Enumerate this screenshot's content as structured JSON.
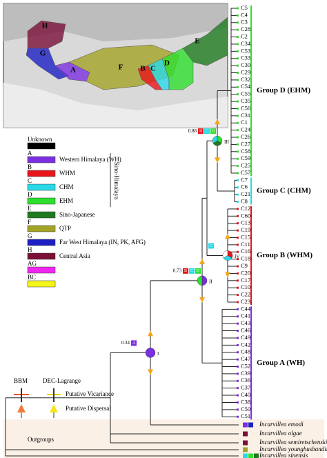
{
  "map": {
    "regions": [
      "H",
      "G",
      "A",
      "F",
      "B",
      "C",
      "D",
      "E"
    ]
  },
  "legend": {
    "items": [
      {
        "label": "Unknown",
        "color": "#000000"
      },
      {
        "code": "A",
        "label": "Western Himalaya (WH)",
        "color": "#7b2fe0"
      },
      {
        "code": "B",
        "label": "WHM",
        "color": "#e8141c"
      },
      {
        "code": "C",
        "label": "CHM",
        "color": "#29d9e8"
      },
      {
        "code": "D",
        "label": "EHM",
        "color": "#2ee02e"
      },
      {
        "code": "E",
        "label": "Sino-Japanese",
        "color": "#1f7a1f"
      },
      {
        "code": "F",
        "label": "QTP",
        "color": "#a3a326"
      },
      {
        "code": "G",
        "label": "Far West Himalaya (IN, PK, AFG)",
        "color": "#1d1fc4"
      },
      {
        "code": "H",
        "label": "Central Asia",
        "color": "#7a1038"
      },
      {
        "code": "AG",
        "color": "#f026f0"
      },
      {
        "code": "BC",
        "color": "#f5f51a"
      }
    ],
    "group": "Sino-Himalaya"
  },
  "events": {
    "methods": [
      "BBM",
      "DEC-Lagrange"
    ],
    "types": [
      "Putative Vicariance",
      "Putative Dispersal"
    ]
  },
  "tree": {
    "tips": [
      "C5",
      "C4",
      "C3",
      "C28",
      "C2",
      "C34",
      "C53",
      "C33",
      "C30",
      "C29",
      "C32",
      "C54",
      "C55",
      "C35",
      "C56",
      "C31",
      "C1",
      "C24",
      "C26",
      "C27",
      "C58",
      "C59",
      "C25",
      "C57",
      "C7",
      "C6",
      "C21",
      "C8",
      "C12",
      "C60",
      "C13",
      "C19",
      "C15",
      "C11",
      "C16",
      "C18",
      "C9",
      "C20",
      "C17",
      "C10",
      "C22",
      "C23",
      "C44",
      "C41",
      "C43",
      "C46",
      "C49",
      "C42",
      "C48",
      "C47",
      "C52",
      "C39",
      "C36",
      "C37",
      "C40",
      "C38",
      "C50",
      "C51"
    ],
    "outgroups": [
      "Incarvillea emodi",
      "Incarvillea olgae",
      "Incarvillea semiretschenskia",
      "Incarvillea younghusbandii",
      "Incarvillea sinensis"
    ],
    "outgroup_label": "Outgroups",
    "groups": [
      {
        "label": "Group D (EHM)",
        "color": "#2ee02e"
      },
      {
        "label": "Group C (CHM)",
        "color": "#29d9e8"
      },
      {
        "label": "Group B (WHM)",
        "color": "#e8141c"
      },
      {
        "label": "Group A (WH)",
        "color": "#7b2fe0"
      }
    ],
    "nodes": [
      {
        "label": "I",
        "support": 0.34,
        "areas": [
          "A"
        ]
      },
      {
        "label": "II",
        "support": 0.73,
        "areas": [
          "B",
          "C",
          "D"
        ]
      },
      {
        "label": "III",
        "support": 0.88,
        "areas": [
          "B",
          "C",
          "D"
        ]
      },
      {
        "label": "IV",
        "areas": [
          "C"
        ]
      }
    ]
  }
}
